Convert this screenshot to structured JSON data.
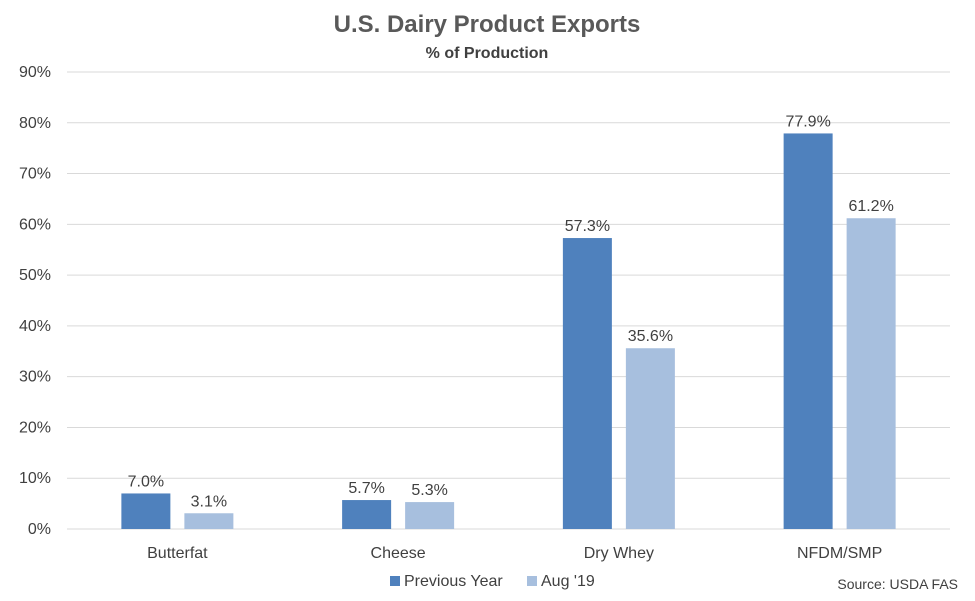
{
  "chart_data": {
    "type": "bar",
    "title": "U.S. Dairy Product Exports",
    "subtitle": "% of Production",
    "categories": [
      "Butterfat",
      "Cheese",
      "Dry Whey",
      "NFDM/SMP"
    ],
    "series": [
      {
        "name": "Previous Year",
        "color": "#4f81bd",
        "values": [
          7.0,
          5.7,
          57.3,
          77.9
        ],
        "labels": [
          "7.0%",
          "5.7%",
          "57.3%",
          "77.9%"
        ]
      },
      {
        "name": "Aug '19",
        "color": "#a7bfde",
        "values": [
          3.1,
          5.3,
          35.6,
          61.2
        ],
        "labels": [
          "3.1%",
          "5.3%",
          "35.6%",
          "61.2%"
        ]
      }
    ],
    "ylim": [
      0,
      90
    ],
    "yticks": [
      0,
      10,
      20,
      30,
      40,
      50,
      60,
      70,
      80,
      90
    ],
    "ytick_labels": [
      "0%",
      "10%",
      "20%",
      "30%",
      "40%",
      "50%",
      "60%",
      "70%",
      "80%",
      "90%"
    ],
    "grid": true,
    "legend": "bottom",
    "source": "Source: USDA FAS"
  }
}
